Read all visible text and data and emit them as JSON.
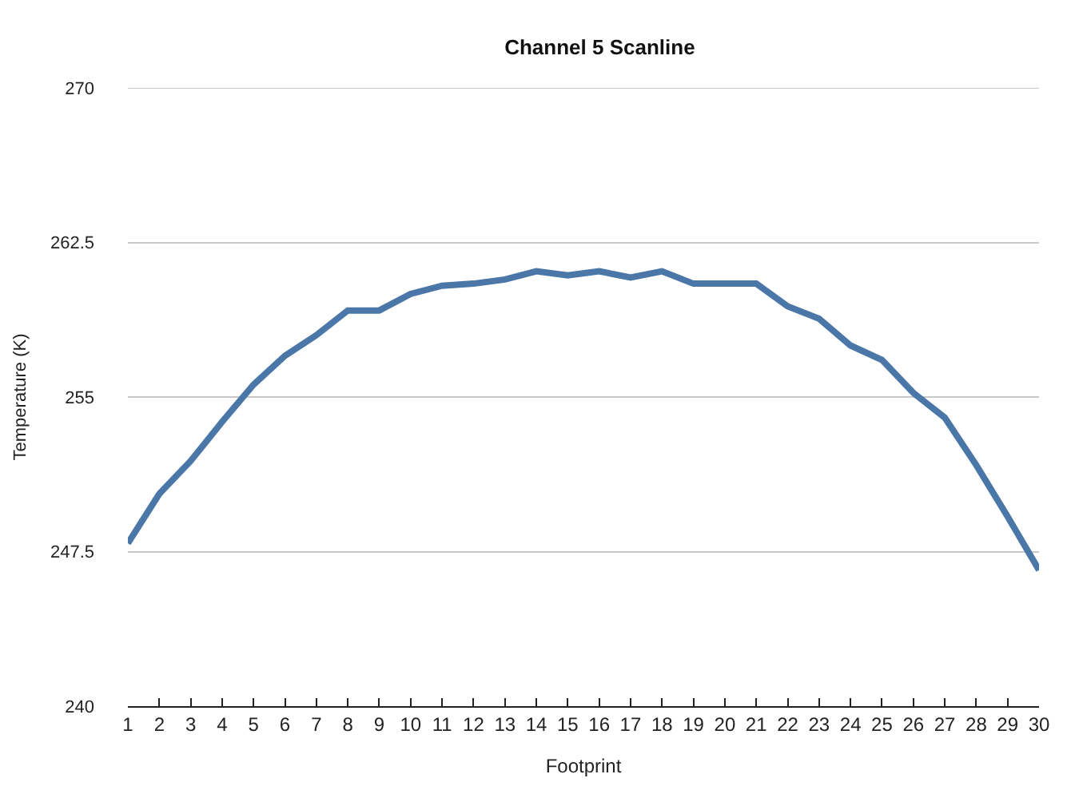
{
  "chart_data": {
    "type": "line",
    "title": "Channel 5 Scanline",
    "xlabel": "Footprint",
    "ylabel": "Temperature (K)",
    "x": [
      1,
      2,
      3,
      4,
      5,
      6,
      7,
      8,
      9,
      10,
      11,
      12,
      13,
      14,
      15,
      16,
      17,
      18,
      19,
      20,
      21,
      22,
      23,
      24,
      25,
      26,
      27,
      28,
      29,
      30
    ],
    "series": [
      {
        "color": "#4a77a8",
        "values": [
          247.9,
          250.3,
          251.9,
          253.8,
          255.6,
          257.0,
          258.0,
          259.2,
          259.2,
          260.0,
          260.4,
          260.5,
          260.7,
          261.1,
          260.9,
          261.1,
          260.8,
          261.1,
          260.5,
          260.5,
          260.5,
          259.4,
          258.8,
          257.5,
          256.8,
          255.2,
          254.0,
          251.7,
          249.2,
          246.6
        ]
      }
    ],
    "xlim": [
      1,
      30
    ],
    "xticks": [
      1,
      2,
      3,
      4,
      5,
      6,
      7,
      8,
      9,
      10,
      11,
      12,
      13,
      14,
      15,
      16,
      17,
      18,
      19,
      20,
      21,
      22,
      23,
      24,
      25,
      26,
      27,
      28,
      29,
      30
    ],
    "ylim": [
      240,
      270
    ],
    "yticks": [
      240,
      247.5,
      255,
      262.5,
      270
    ],
    "grid": "y",
    "marker": "none",
    "line_style": "solid"
  }
}
